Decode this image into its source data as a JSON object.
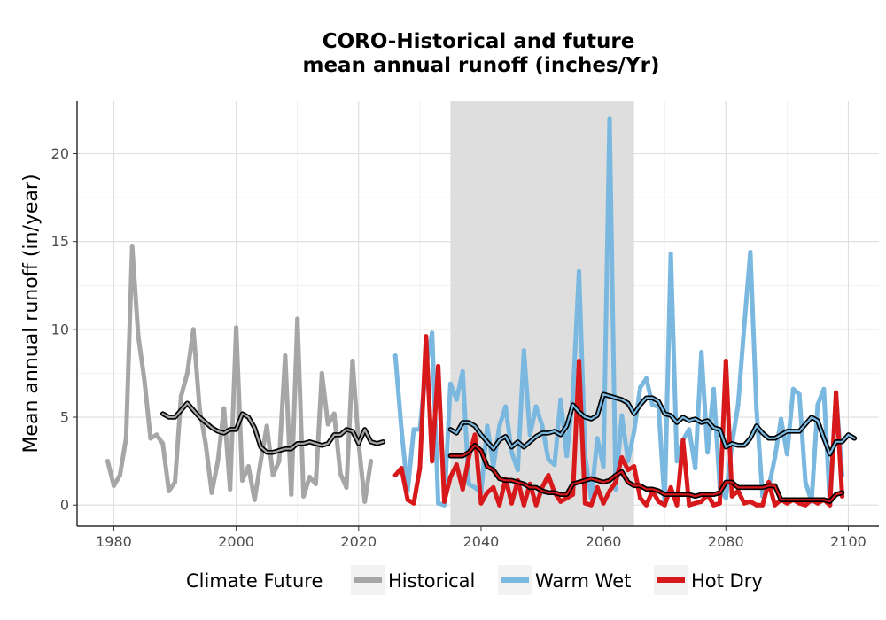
{
  "chart_data": {
    "type": "line",
    "title_line1": "CORO-Historical and future",
    "title_line2": "mean annual runoff (inches/Yr)",
    "xlabel": "",
    "ylabel": "Mean annual runoff (in/year)",
    "xlim": [
      1974,
      2105
    ],
    "ylim": [
      -1.2,
      23
    ],
    "xticks": [
      1980,
      2000,
      2020,
      2040,
      2060,
      2080,
      2100
    ],
    "yticks": [
      0,
      5,
      10,
      15,
      20
    ],
    "xtick_labels": [
      "1980",
      "2000",
      "2020",
      "2040",
      "2060",
      "2080",
      "2100"
    ],
    "ytick_labels": [
      "0",
      "5",
      "10",
      "15",
      "20"
    ],
    "grid": true,
    "shaded_period": [
      2035,
      2065
    ],
    "legend": {
      "title": "Climate Future",
      "position": "bottom",
      "items": [
        "Historical",
        "Warm Wet",
        "Hot Dry"
      ]
    },
    "colors": {
      "Historical": "#a6a6a6",
      "Warm Wet": "#7ab8e0",
      "Hot Dry": "#d7191c",
      "shade": "#dcdcdc",
      "smooth_outline": "#000000"
    },
    "series": [
      {
        "name": "Historical",
        "x_start": 1979,
        "values": [
          2.5,
          1.1,
          1.7,
          3.8,
          14.7,
          9.6,
          7.1,
          3.8,
          4.0,
          3.5,
          0.8,
          1.3,
          6.2,
          7.5,
          10.0,
          5.5,
          3.5,
          0.7,
          2.5,
          5.5,
          0.9,
          10.1,
          1.4,
          2.2,
          0.3,
          2.5,
          4.5,
          1.7,
          2.5,
          8.5,
          0.6,
          10.6,
          0.5,
          1.6,
          1.2,
          7.5,
          4.6,
          5.2,
          1.8,
          1.0,
          8.2,
          3.5,
          0.2,
          2.5
        ],
        "smooth_x_start": 1988,
        "smooth": [
          5.2,
          5.0,
          5.0,
          5.4,
          5.8,
          5.4,
          5.0,
          4.7,
          4.4,
          4.2,
          4.1,
          4.3,
          4.3,
          5.2,
          5.0,
          4.4,
          3.3,
          3.0,
          3.0,
          3.1,
          3.2,
          3.2,
          3.5,
          3.5,
          3.6,
          3.5,
          3.4,
          3.5,
          4.0,
          4.0,
          4.3,
          4.2,
          3.5,
          4.3,
          3.6,
          3.5,
          3.6
        ]
      },
      {
        "name": "Warm Wet",
        "x_start": 2026,
        "values": [
          8.5,
          4.3,
          0.8,
          4.3,
          4.3,
          7.8,
          9.8,
          0.1,
          0.0,
          6.9,
          6.0,
          7.6,
          1.2,
          1.0,
          0.7,
          4.5,
          2.2,
          4.5,
          5.6,
          3.0,
          2.0,
          8.8,
          4.0,
          5.6,
          4.5,
          2.6,
          2.3,
          6.0,
          2.8,
          6.2,
          13.3,
          2.8,
          0.4,
          3.8,
          2.2,
          22.0,
          0.9,
          5.1,
          2.5,
          4.2,
          6.7,
          7.2,
          5.7,
          5.6,
          0.1,
          14.3,
          2.5,
          3.7,
          4.3,
          2.1,
          8.7,
          3.0,
          6.6,
          1.0,
          0.4,
          3.5,
          5.7,
          10.2,
          14.4,
          5.5,
          0.5,
          1.0,
          2.7,
          4.9,
          2.9,
          6.6,
          6.3,
          1.3,
          0.2,
          5.7,
          6.6,
          0.0,
          6.3,
          1.7
        ],
        "smooth_x_start": 2035,
        "smooth": [
          4.3,
          4.1,
          4.7,
          4.7,
          4.5,
          4.0,
          3.6,
          3.2,
          3.7,
          3.9,
          3.3,
          3.6,
          3.3,
          3.6,
          3.9,
          4.1,
          4.1,
          4.2,
          4.0,
          4.5,
          5.7,
          5.3,
          5.0,
          4.9,
          5.1,
          6.3,
          6.2,
          6.1,
          6.0,
          5.8,
          5.2,
          5.7,
          6.1,
          6.1,
          5.9,
          5.2,
          5.1,
          4.7,
          5.0,
          4.8,
          4.9,
          4.7,
          4.8,
          4.4,
          4.3,
          3.3,
          3.5,
          3.4,
          3.4,
          3.8,
          4.5,
          4.1,
          3.8,
          3.8,
          4.0,
          4.2,
          4.2,
          4.2,
          4.6,
          5.0,
          4.8,
          3.8,
          2.9,
          3.6,
          3.6,
          4.0,
          3.8
        ]
      },
      {
        "name": "Hot Dry",
        "x_start": 2026,
        "values": [
          1.7,
          2.1,
          0.3,
          0.1,
          2.1,
          9.6,
          2.5,
          7.9,
          0.2,
          1.6,
          2.3,
          0.9,
          2.7,
          4.0,
          0.1,
          0.7,
          1.0,
          0.0,
          1.5,
          0.1,
          1.4,
          0.0,
          1.2,
          0.0,
          1.0,
          1.7,
          0.7,
          0.2,
          0.4,
          0.6,
          8.2,
          0.1,
          0.0,
          1.0,
          0.1,
          0.8,
          1.3,
          2.7,
          2.0,
          2.2,
          0.4,
          0.0,
          0.8,
          0.2,
          0.0,
          1.0,
          0.0,
          3.7,
          0.0,
          0.1,
          0.2,
          0.6,
          0.0,
          0.1,
          8.2,
          0.5,
          0.8,
          0.1,
          0.2,
          0.0,
          0.0,
          1.3,
          0.0,
          0.3,
          0.1,
          0.3,
          0.1,
          0.0,
          0.3,
          0.1,
          0.3,
          0.0,
          6.4,
          0.5
        ],
        "smooth_x_start": 2035,
        "smooth": [
          2.8,
          2.8,
          2.8,
          3.0,
          3.4,
          3.1,
          2.2,
          2.0,
          1.5,
          1.4,
          1.4,
          1.3,
          1.2,
          1.0,
          1.0,
          0.8,
          0.7,
          0.7,
          0.6,
          0.6,
          1.2,
          1.3,
          1.4,
          1.5,
          1.4,
          1.3,
          1.4,
          1.7,
          1.9,
          1.3,
          1.1,
          1.1,
          0.9,
          0.9,
          0.8,
          0.6,
          0.6,
          0.6,
          0.6,
          0.6,
          0.5,
          0.6,
          0.6,
          0.6,
          0.7,
          1.3,
          1.3,
          1.0,
          1.0,
          1.0,
          1.0,
          1.0,
          1.1,
          1.1,
          0.3,
          0.3,
          0.3,
          0.3,
          0.3,
          0.3,
          0.3,
          0.3,
          0.2,
          0.6,
          0.7
        ]
      }
    ]
  }
}
